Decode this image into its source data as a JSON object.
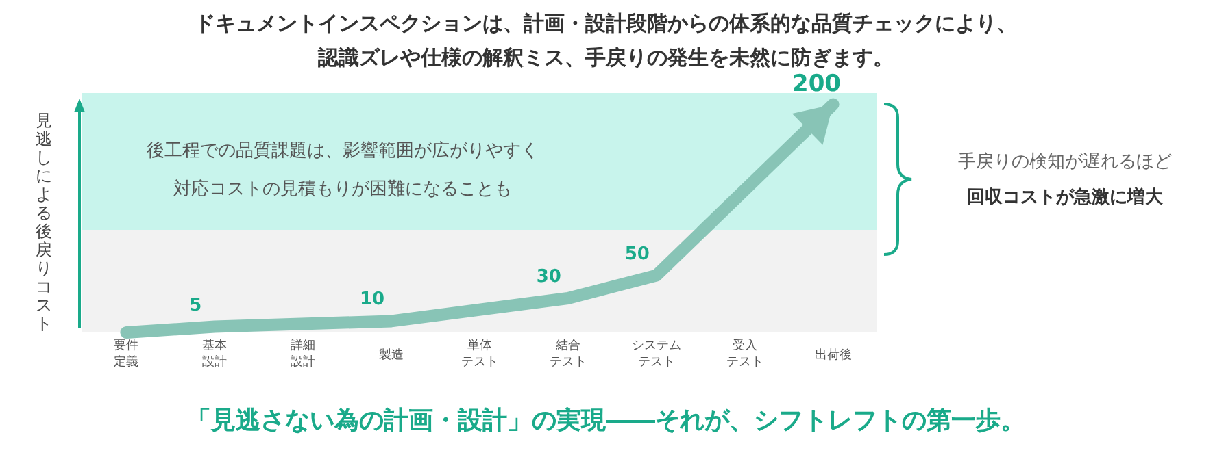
{
  "chart_data": {
    "type": "line",
    "title": "ドキュメントインスペクションは、計画・設計段階からの体系的な品質チェックにより、認識ズレや仕様の解釈ミス、手戻りの発生を未然に防ぎます。",
    "ylabel": "見逃しによる後戻りコスト",
    "categories": [
      "要件定義",
      "基本設計",
      "詳細設計",
      "製造",
      "単体テスト",
      "結合テスト",
      "システムテスト",
      "受入テスト",
      "出荷後"
    ],
    "series": [
      {
        "color": "#88c4b6",
        "values": [
          0,
          5,
          null,
          10,
          null,
          30,
          50,
          null,
          200
        ],
        "value_labels": [
          null,
          "5",
          null,
          "10",
          null,
          "30",
          "50",
          null,
          "200"
        ]
      }
    ],
    "ylim": [
      0,
      210
    ],
    "bands": [
      {
        "axis": "y",
        "from": 90,
        "to": 210,
        "color": "#c8f4ec",
        "label": "後工程での品質課題は、影響範囲が広がりやすく対応コストの見積もりが困難になることも"
      }
    ],
    "annotations": [
      "手戻りの検知が遅れるほど",
      "回収コストが急激に増大",
      "「見逃さない為の計画・設計」の実現――それが、シフトレフトの第一歩。"
    ],
    "line_style": "solid"
  }
}
